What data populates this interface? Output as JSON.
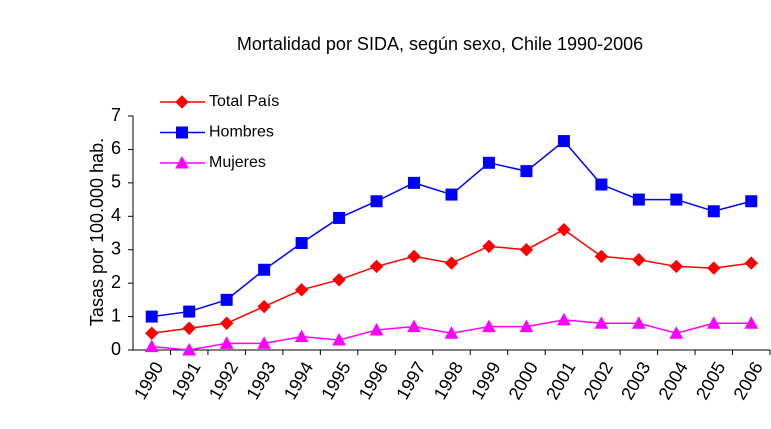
{
  "chart_data": {
    "type": "line",
    "title": "Mortalidad por SIDA, según sexo, Chile 1990-2006",
    "y_label": "Tasas por 100.000 hab.",
    "categories": [
      "1990",
      "1991",
      "1992",
      "1993",
      "1994",
      "1995",
      "1996",
      "1997",
      "1998",
      "1999",
      "2000",
      "2001",
      "2002",
      "2003",
      "2004",
      "2005",
      "2006"
    ],
    "series": [
      {
        "name": "Total País",
        "color": "#ff0000",
        "marker": "diamond",
        "values": [
          0.5,
          0.65,
          0.8,
          1.3,
          1.8,
          2.1,
          2.5,
          2.8,
          2.6,
          3.1,
          3.0,
          3.6,
          2.8,
          2.7,
          2.5,
          2.45,
          2.6
        ]
      },
      {
        "name": "Hombres",
        "color": "#0000ff",
        "marker": "square",
        "values": [
          1.0,
          1.15,
          1.5,
          2.4,
          3.2,
          3.95,
          4.45,
          5.0,
          4.65,
          5.6,
          5.35,
          6.25,
          4.95,
          4.5,
          4.5,
          4.15,
          4.45
        ]
      },
      {
        "name": "Mujeres",
        "color": "#ff00ff",
        "marker": "triangle",
        "values": [
          0.1,
          0.0,
          0.2,
          0.2,
          0.4,
          0.3,
          0.6,
          0.7,
          0.5,
          0.7,
          0.7,
          0.9,
          0.8,
          0.8,
          0.5,
          0.8,
          0.8
        ]
      }
    ],
    "ylim": [
      0,
      7
    ],
    "yticks": [
      0,
      1,
      2,
      3,
      4,
      5,
      6,
      7
    ],
    "grid": false,
    "legend": "upper left"
  }
}
